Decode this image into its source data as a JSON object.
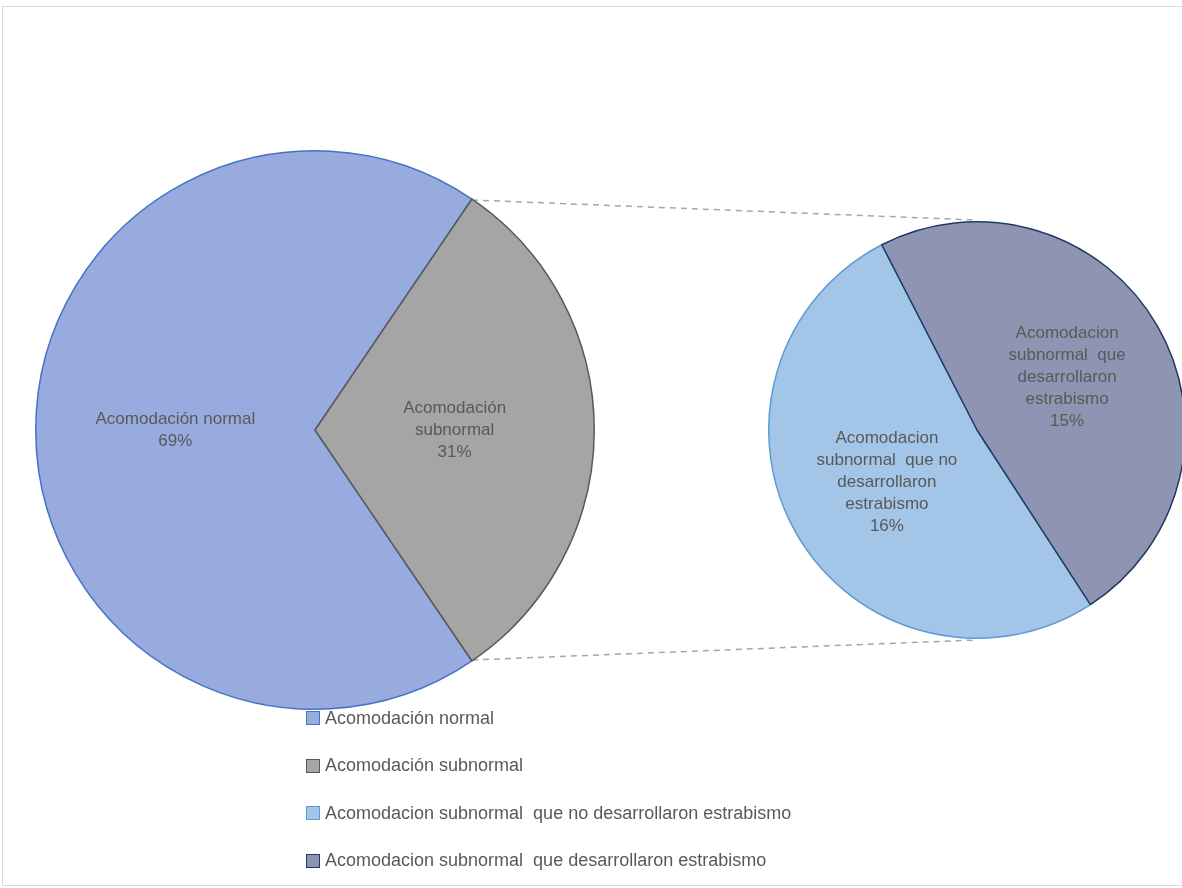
{
  "chart_data": [
    {
      "type": "pie",
      "categories": [
        "Acomodación normal",
        "Acomodación subnormal"
      ],
      "values": [
        69,
        31
      ],
      "colors": [
        "#97abdf",
        "#a5a5a5"
      ],
      "value_labels": [
        "69%",
        "31%"
      ],
      "legend": "bottom"
    },
    {
      "type": "pie",
      "categories": [
        "Acomodacion subnormal  que no desarrollaron estrabismo",
        "Acomodacion subnormal  que desarrollaron estrabismo"
      ],
      "values": [
        16,
        15
      ],
      "colors": [
        "#a3c5e8",
        "#8d95b2"
      ],
      "value_labels": [
        "16%",
        "15%"
      ],
      "legend": "bottom"
    }
  ]
}
